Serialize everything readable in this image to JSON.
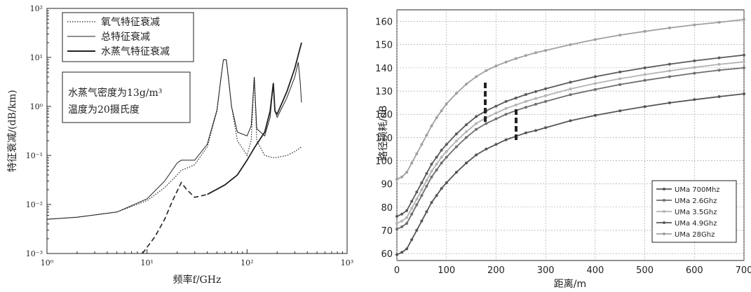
{
  "left_chart": {
    "xlabel": "频率f/GHz",
    "ylabel": "特征衰减/(dB/km)",
    "legend": [
      "氧气特征衰减",
      "总特征衰减",
      "水蒸气特征衰减"
    ],
    "annotation": [
      "水蒸气密度为13g/m³",
      "温度为20摄氏度"
    ],
    "x_ticks": [
      "10⁰",
      "10¹",
      "10²",
      "10³"
    ],
    "y_ticks": [
      "10⁻³",
      "10⁻²",
      "10⁻¹",
      "10⁰",
      "10¹",
      "10²"
    ]
  },
  "right_chart": {
    "xlabel": "距离/m",
    "ylabel": "路径损耗/dB",
    "x_ticks": [
      "0",
      "100",
      "200",
      "300",
      "400",
      "500",
      "600",
      "700"
    ],
    "y_ticks": [
      "60",
      "70",
      "80",
      "90",
      "100",
      "110",
      "120",
      "130",
      "140",
      "150",
      "160"
    ]
  },
  "chart_data": [
    {
      "type": "line",
      "log_x": true,
      "log_y": true,
      "xlim": [
        1,
        1000
      ],
      "ylim": [
        0.001,
        100
      ],
      "grid": false,
      "legend_position": "top-left",
      "series": [
        {
          "name": "氧气特征衰减",
          "style": "dotted",
          "x": [
            1,
            2,
            5,
            10,
            15,
            20,
            22,
            25,
            30,
            40,
            50,
            55,
            58,
            60,
            62,
            65,
            70,
            80,
            100,
            110,
            118,
            125,
            150,
            180,
            183,
            190,
            250,
            300,
            350
          ],
          "y": [
            0.005,
            0.0055,
            0.007,
            0.012,
            0.022,
            0.04,
            0.05,
            0.055,
            0.065,
            0.15,
            0.8,
            4,
            9,
            9,
            9,
            4,
            1,
            0.2,
            0.1,
            0.2,
            4,
            0.2,
            0.1,
            0.09,
            0.09,
            0.09,
            0.1,
            0.12,
            0.15
          ]
        },
        {
          "name": "总特征衰减",
          "style": "thin",
          "x": [
            1,
            2,
            5,
            10,
            15,
            20,
            22,
            25,
            30,
            40,
            50,
            55,
            58,
            60,
            62,
            65,
            70,
            80,
            100,
            110,
            118,
            125,
            150,
            170,
            183,
            190,
            200,
            250,
            300,
            325,
            340,
            350
          ],
          "y": [
            0.005,
            0.0055,
            0.007,
            0.013,
            0.03,
            0.07,
            0.08,
            0.08,
            0.08,
            0.17,
            0.85,
            4,
            9,
            9,
            9,
            4,
            1,
            0.3,
            0.25,
            0.4,
            4,
            0.35,
            0.25,
            0.6,
            3,
            0.8,
            0.6,
            1.5,
            4,
            8,
            3,
            1.2
          ]
        },
        {
          "name": "水蒸气特征衰减",
          "style": "thick",
          "x": [
            9,
            12,
            15,
            18,
            22,
            25,
            30,
            40,
            60,
            80,
            100,
            120,
            150,
            170,
            183,
            190,
            200,
            250,
            300,
            350
          ],
          "y": [
            0.001,
            0.0022,
            0.005,
            0.012,
            0.028,
            0.02,
            0.014,
            0.016,
            0.025,
            0.04,
            0.08,
            0.15,
            0.3,
            0.8,
            3,
            0.8,
            0.7,
            2,
            6,
            20
          ]
        }
      ]
    },
    {
      "type": "line",
      "xlim": [
        0,
        700
      ],
      "ylim": [
        57,
        165
      ],
      "grid": true,
      "legend_position": "bottom-right",
      "x": [
        0,
        10,
        20,
        30,
        40,
        50,
        60,
        70,
        80,
        90,
        100,
        120,
        140,
        160,
        180,
        200,
        220,
        240,
        260,
        280,
        300,
        350,
        400,
        450,
        500,
        550,
        600,
        650,
        700
      ],
      "series": [
        {
          "name": "UMa 700Mhz",
          "color": "#555555",
          "values": [
            59.5,
            60.5,
            62,
            66,
            70,
            74,
            78,
            82,
            85,
            88,
            90.5,
            95,
            99,
            102.5,
            105,
            107,
            109,
            110.5,
            112,
            113,
            114.2,
            117.2,
            119.5,
            121.5,
            123.3,
            124.9,
            126.3,
            127.6,
            128.8
          ]
        },
        {
          "name": "UMa 2.6Ghz",
          "color": "#6e6e6e",
          "values": [
            70.5,
            71.5,
            73,
            77,
            81,
            85,
            89,
            93,
            96,
            99,
            101.5,
            106,
            110,
            113.5,
            116,
            118,
            120,
            121.6,
            123,
            124.3,
            125.5,
            128.4,
            130.7,
            132.8,
            134.6,
            136.2,
            137.7,
            139,
            140
          ]
        },
        {
          "name": "UMa 3.5Ghz",
          "color": "#b4b4b4",
          "values": [
            73,
            74,
            75.5,
            79.5,
            83.5,
            87.5,
            91.5,
            95.5,
            98.5,
            101.5,
            104,
            108.5,
            112.5,
            116,
            118.5,
            120.5,
            122.5,
            124,
            125.5,
            126.8,
            128,
            130.9,
            133.3,
            135.3,
            137.1,
            138.7,
            140.2,
            141.5,
            142.6
          ]
        },
        {
          "name": "UMa 4.9Ghz",
          "color": "#5a5a5a",
          "values": [
            76,
            77,
            78.5,
            82.5,
            86.5,
            90.5,
            94.5,
            98.5,
            101.5,
            104.5,
            107,
            111.5,
            115.5,
            119,
            121.5,
            123.5,
            125.5,
            127,
            128.5,
            129.8,
            131,
            133.8,
            136.2,
            138.2,
            140,
            141.6,
            143,
            144.3,
            145.5
          ]
        },
        {
          "name": "UMa 28Ghz",
          "color": "#a0a0a0",
          "values": [
            92,
            93,
            95,
            99,
            103,
            107,
            111,
            115,
            118.5,
            121.5,
            124.5,
            129,
            133,
            136.2,
            138.8,
            140.8,
            142.5,
            144,
            145.3,
            146.5,
            147.5,
            150,
            152.2,
            154.1,
            155.7,
            157.2,
            158.5,
            159.6,
            160.8
          ]
        }
      ]
    }
  ]
}
